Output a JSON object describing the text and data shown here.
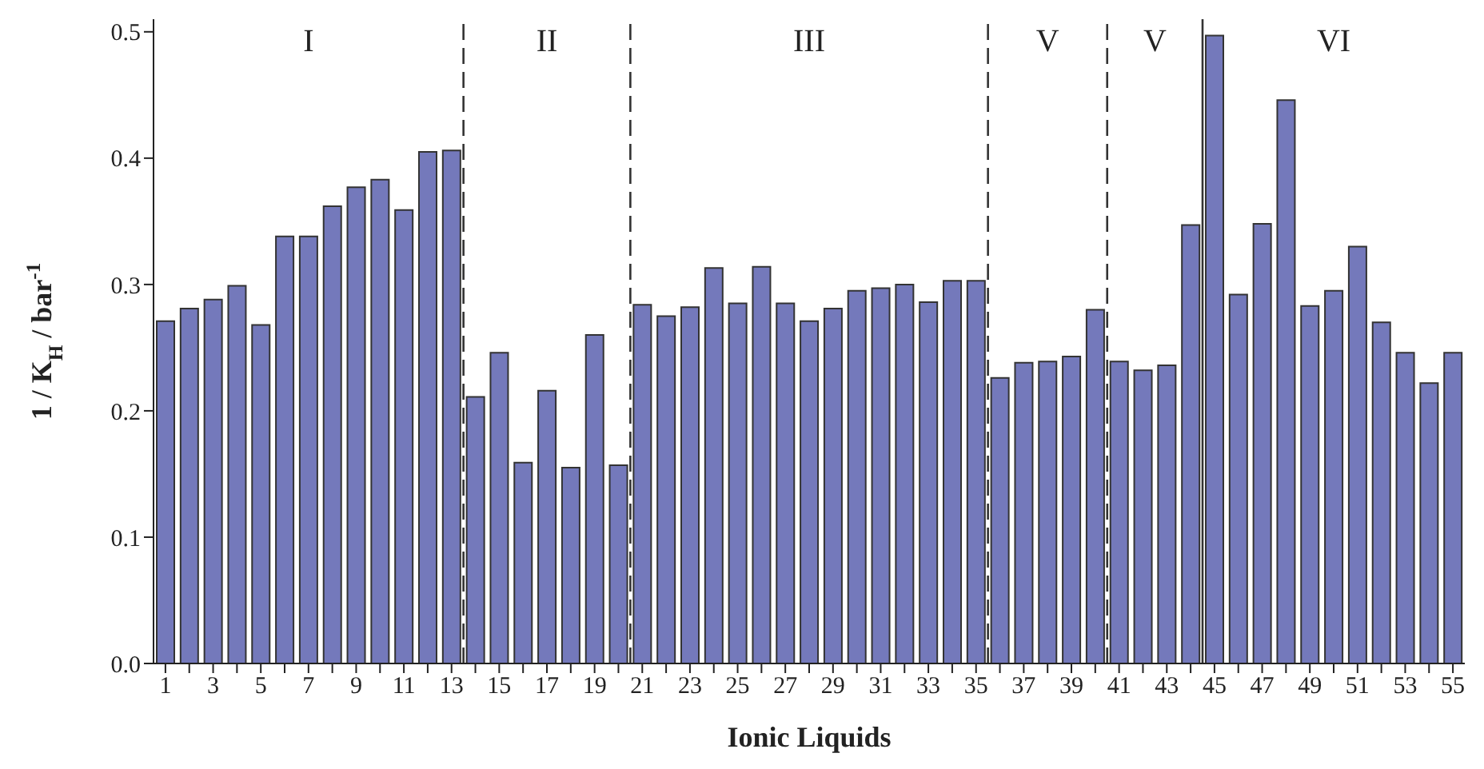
{
  "chart_data": {
    "type": "bar",
    "xlabel": "Ionic Liquids",
    "ylabel": "1 / K$_{H}$ / bar$^{-1}$",
    "x": [
      1,
      2,
      3,
      4,
      5,
      6,
      7,
      8,
      9,
      10,
      11,
      12,
      13,
      14,
      15,
      16,
      17,
      18,
      19,
      20,
      21,
      22,
      23,
      24,
      25,
      26,
      27,
      28,
      29,
      30,
      31,
      32,
      33,
      34,
      35,
      36,
      37,
      38,
      39,
      40,
      41,
      42,
      43,
      44,
      45,
      46,
      47,
      48,
      49,
      50,
      51,
      52,
      53,
      54,
      55
    ],
    "values": [
      0.271,
      0.281,
      0.288,
      0.299,
      0.268,
      0.338,
      0.338,
      0.362,
      0.377,
      0.383,
      0.359,
      0.405,
      0.406,
      0.211,
      0.246,
      0.159,
      0.216,
      0.155,
      0.26,
      0.157,
      0.284,
      0.275,
      0.282,
      0.313,
      0.285,
      0.314,
      0.285,
      0.271,
      0.281,
      0.295,
      0.297,
      0.3,
      0.286,
      0.303,
      0.303,
      0.226,
      0.238,
      0.239,
      0.243,
      0.28,
      0.239,
      0.232,
      0.236,
      0.347,
      0.497,
      0.292,
      0.348,
      0.446,
      0.283,
      0.295,
      0.33,
      0.27,
      0.246,
      0.222,
      0.246
    ],
    "color": "#7479bb",
    "xlim": [
      0.5,
      55.5
    ],
    "xticks": [
      1,
      {
        "value": 2,
        "label": null
      },
      3,
      {
        "value": 4,
        "label": null
      },
      5,
      {
        "value": 6,
        "label": null
      },
      7,
      {
        "value": 8,
        "label": null
      },
      9,
      {
        "value": 10,
        "label": null
      },
      11,
      {
        "value": 12,
        "label": null
      },
      13,
      {
        "value": 14,
        "label": null
      },
      15,
      {
        "value": 16,
        "label": null
      },
      17,
      {
        "value": 18,
        "label": null
      },
      19,
      {
        "value": 20,
        "label": null
      },
      21,
      {
        "value": 22,
        "label": null
      },
      23,
      {
        "value": 24,
        "label": null
      },
      25,
      {
        "value": 26,
        "label": null
      },
      27,
      {
        "value": 28,
        "label": null
      },
      29,
      {
        "value": 30,
        "label": null
      },
      31,
      {
        "value": 32,
        "label": null
      },
      33,
      {
        "value": 34,
        "label": null
      },
      35,
      {
        "value": 36,
        "label": null
      },
      37,
      {
        "value": 38,
        "label": null
      },
      39,
      {
        "value": 40,
        "label": null
      },
      41,
      {
        "value": 42,
        "label": null
      },
      43,
      {
        "value": 44,
        "label": null
      },
      45,
      {
        "value": 46,
        "label": null
      },
      47,
      {
        "value": 48,
        "label": null
      },
      49,
      {
        "value": 50,
        "label": null
      },
      51,
      {
        "value": 52,
        "label": null
      },
      53,
      {
        "value": 54,
        "label": null
      },
      55
    ],
    "ylim": [
      0,
      0.51
    ],
    "yticks": [
      {
        "value": 0,
        "label": "0.0"
      },
      0.1,
      0.2,
      0.3,
      0.4,
      0.5
    ],
    "ref_lines": [
      {
        "axis": "x",
        "value": 13.5,
        "line_style": "dashed"
      },
      {
        "axis": "x",
        "value": 20.5,
        "line_style": "dashed"
      },
      {
        "axis": "x",
        "value": 35.5,
        "line_style": "dashed"
      },
      {
        "axis": "x",
        "value": 40.5,
        "line_style": "dashed"
      },
      {
        "axis": "x",
        "value": 44.5,
        "line_style": "solid"
      }
    ],
    "annotations": [
      "I",
      "II",
      "III",
      "V",
      "V",
      "VI"
    ],
    "grid": false,
    "legend": false
  }
}
